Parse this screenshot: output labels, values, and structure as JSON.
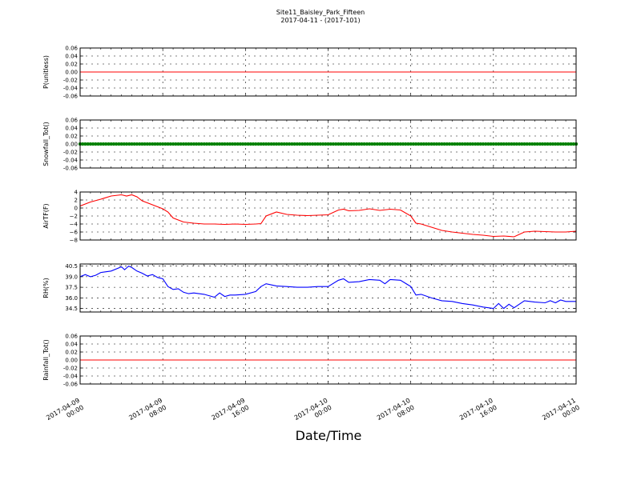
{
  "title_line1": "Site11_Baisley_Park_Fifteen",
  "title_line2": "2017-04-11 - (2017-101)",
  "xlabel": "Date/Time",
  "x_ticks": [
    {
      "l1": "2017-04-09",
      "l2": "00:00",
      "h": 0
    },
    {
      "l1": "2017-04-09",
      "l2": "08:00",
      "h": 8
    },
    {
      "l1": "2017-04-09",
      "l2": "16:00",
      "h": 16
    },
    {
      "l1": "2017-04-10",
      "l2": "00:00",
      "h": 24
    },
    {
      "l1": "2017-04-10",
      "l2": "08:00",
      "h": 32
    },
    {
      "l1": "2017-04-10",
      "l2": "16:00",
      "h": 40
    },
    {
      "l1": "2017-04-11",
      "l2": "00:00",
      "h": 48
    }
  ],
  "chart_data": [
    {
      "type": "line",
      "ylabel": "P(unitless)",
      "ylim": [
        -0.06,
        0.06
      ],
      "yticks": [
        "0.06",
        "0.04",
        "0.02",
        "0.00",
        "-0.02",
        "-0.04",
        "-0.06"
      ],
      "color": "#ff0000",
      "marker": false,
      "grid": true,
      "xlim_hours": [
        0,
        48
      ],
      "x_hours": [
        0,
        48
      ],
      "values": [
        0,
        0
      ]
    },
    {
      "type": "line",
      "ylabel": "Snowfall_Tot()",
      "ylim": [
        -0.06,
        0.06
      ],
      "yticks": [
        "0.06",
        "0.04",
        "0.02",
        "0.00",
        "-0.02",
        "-0.04",
        "-0.06"
      ],
      "color": "#008000",
      "marker": true,
      "grid": true,
      "xlim_hours": [
        0,
        48
      ],
      "x_hours": [
        0,
        48
      ],
      "values": [
        0,
        0
      ]
    },
    {
      "type": "line",
      "ylabel": "AirTF(F)",
      "ylim": [
        -8,
        4
      ],
      "yticks": [
        "4",
        "2",
        "0",
        "−2",
        "−4",
        "−6",
        "−8"
      ],
      "color": "#ff0000",
      "marker": false,
      "grid": true,
      "xlim_hours": [
        0,
        48
      ],
      "x_hours": [
        0,
        1,
        2,
        3,
        4,
        4.5,
        5,
        5.5,
        6,
        7,
        8,
        8.5,
        9,
        10,
        11,
        12,
        13,
        14,
        15,
        16,
        17,
        17.5,
        18,
        19,
        20,
        21,
        22,
        23,
        24,
        25,
        25.5,
        26,
        27,
        28,
        29,
        30,
        31,
        32,
        32.5,
        33,
        34,
        35,
        36,
        37,
        38,
        39,
        40,
        41,
        42,
        43,
        44,
        45,
        46,
        47,
        48
      ],
      "values": [
        0.5,
        1.5,
        2.2,
        3.0,
        3.3,
        3.0,
        3.3,
        2.8,
        1.8,
        0.8,
        -0.2,
        -1.0,
        -2.5,
        -3.5,
        -3.8,
        -4.0,
        -4.0,
        -4.1,
        -4.0,
        -4.1,
        -4.0,
        -3.9,
        -2.0,
        -1.0,
        -1.6,
        -1.8,
        -1.9,
        -1.8,
        -1.7,
        -0.5,
        -0.3,
        -0.7,
        -0.6,
        -0.2,
        -0.6,
        -0.3,
        -0.5,
        -2.0,
        -3.8,
        -4.0,
        -4.8,
        -5.6,
        -6.0,
        -6.3,
        -6.6,
        -6.8,
        -7.1,
        -7.0,
        -7.2,
        -6.0,
        -5.8,
        -5.9,
        -6.0,
        -6.0,
        -5.8
      ]
    },
    {
      "type": "line",
      "ylabel": "RH(%)",
      "ylim": [
        34,
        40.8
      ],
      "yticks": [
        "40.5",
        "39.0",
        "37.5",
        "36.0",
        "34.5"
      ],
      "ytick_values": [
        40.5,
        39.0,
        37.5,
        36.0,
        34.5
      ],
      "color": "#0000ff",
      "marker": false,
      "grid": true,
      "xlim_hours": [
        0,
        48
      ],
      "x_hours": [
        0,
        0.5,
        1,
        1.5,
        2,
        3,
        4,
        4.3,
        4.7,
        5,
        5.5,
        6,
        6.5,
        7,
        7.5,
        8,
        8.5,
        9,
        9.5,
        10,
        10.5,
        11,
        12,
        13,
        13.5,
        14,
        14.5,
        15,
        16,
        17,
        17.5,
        18,
        19,
        20,
        21,
        22,
        23,
        24,
        25,
        25.5,
        26,
        27,
        28,
        29,
        29.5,
        30,
        31,
        32,
        32.5,
        33,
        34,
        35,
        36,
        37,
        38,
        39,
        40,
        40.5,
        41,
        41.5,
        42,
        43,
        44,
        45,
        45.5,
        46,
        46.5,
        47,
        48
      ],
      "values": [
        39.0,
        39.3,
        39.0,
        39.2,
        39.6,
        39.8,
        40.4,
        40.0,
        40.5,
        40.3,
        39.8,
        39.5,
        39.1,
        39.3,
        38.9,
        38.7,
        37.6,
        37.2,
        37.3,
        36.8,
        36.6,
        36.7,
        36.5,
        36.1,
        36.7,
        36.2,
        36.4,
        36.4,
        36.5,
        36.9,
        37.6,
        38.0,
        37.7,
        37.6,
        37.5,
        37.5,
        37.6,
        37.6,
        38.5,
        38.7,
        38.2,
        38.3,
        38.6,
        38.5,
        38.0,
        38.6,
        38.5,
        37.6,
        36.4,
        36.5,
        36.0,
        35.6,
        35.5,
        35.2,
        35.0,
        34.7,
        34.5,
        35.2,
        34.5,
        35.1,
        34.6,
        35.6,
        35.4,
        35.3,
        35.6,
        35.3,
        35.7,
        35.5,
        35.5
      ]
    },
    {
      "type": "line",
      "ylabel": "Rainfall_Tot()",
      "ylim": [
        -0.06,
        0.06
      ],
      "yticks": [
        "0.06",
        "0.04",
        "0.02",
        "0.00",
        "-0.02",
        "-0.04",
        "-0.06"
      ],
      "color": "#ff0000",
      "marker": false,
      "grid": true,
      "xlim_hours": [
        0,
        48
      ],
      "x_hours": [
        0,
        48
      ],
      "values": [
        0,
        0
      ]
    }
  ]
}
